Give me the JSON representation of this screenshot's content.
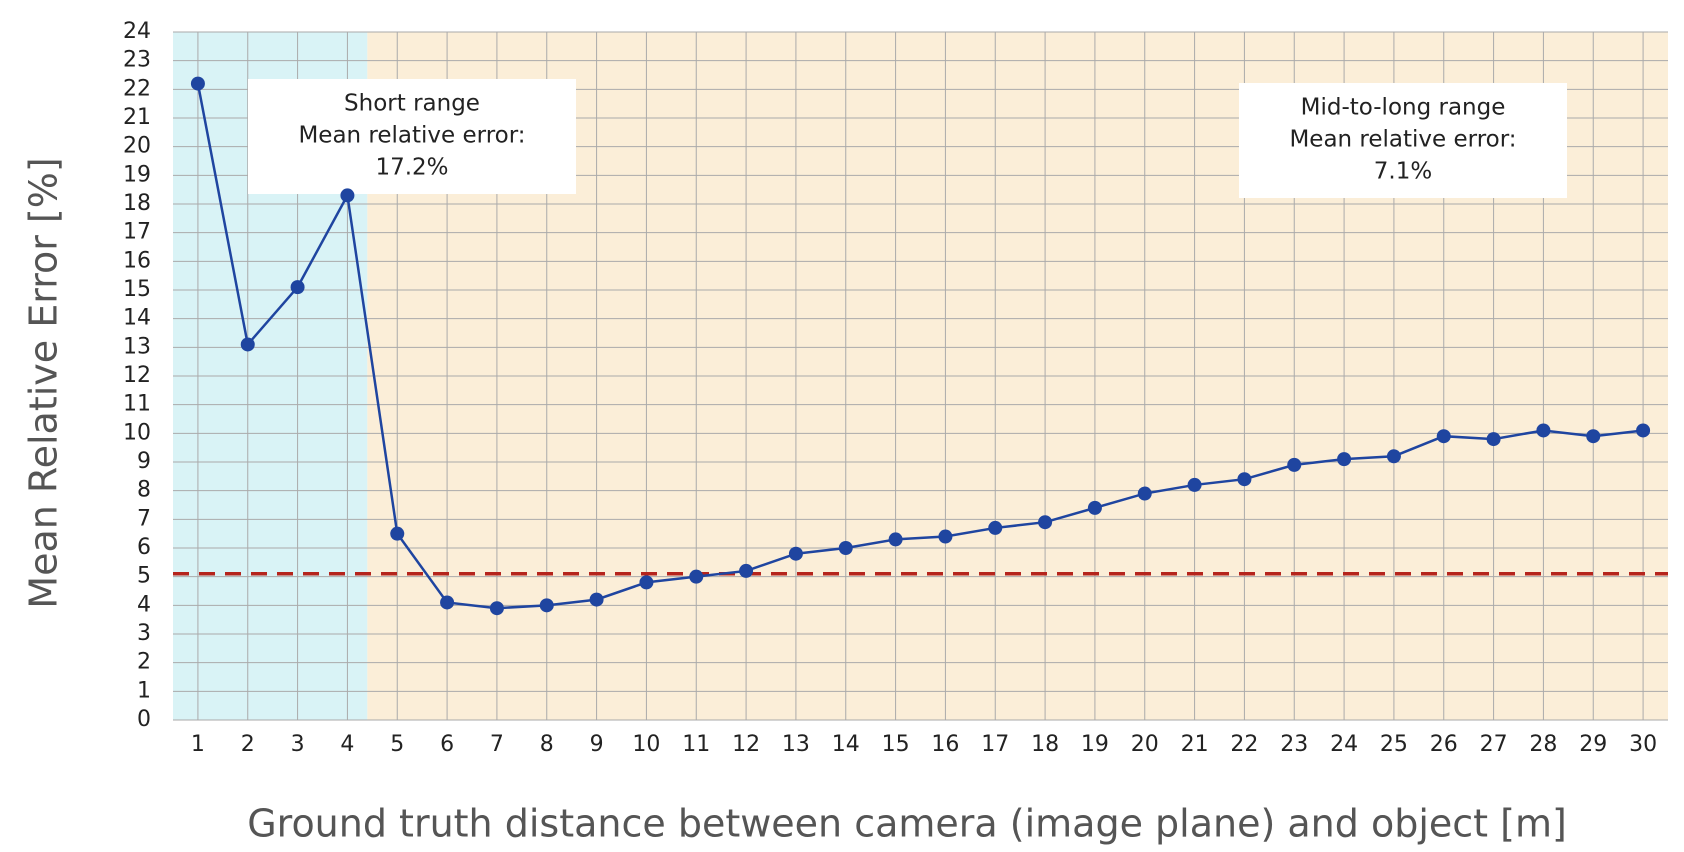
{
  "chart_data": {
    "type": "line",
    "x_label": "Ground truth distance between camera (image plane) and object [m]",
    "y_label": "Mean Relative Error [%]",
    "x": [
      1,
      2,
      3,
      4,
      5,
      6,
      7,
      8,
      9,
      10,
      11,
      12,
      13,
      14,
      15,
      16,
      17,
      18,
      19,
      20,
      21,
      22,
      23,
      24,
      25,
      26,
      27,
      28,
      29,
      30
    ],
    "series": [
      {
        "color": "#1f45a0",
        "values": [
          22.2,
          13.1,
          15.1,
          18.3,
          6.5,
          4.1,
          3.9,
          4.0,
          4.2,
          4.8,
          5.0,
          5.2,
          5.8,
          6.0,
          6.3,
          6.4,
          6.7,
          6.9,
          7.4,
          7.9,
          8.2,
          8.4,
          8.9,
          9.1,
          9.2,
          9.9,
          9.8,
          10.1,
          9.9,
          10.1
        ]
      }
    ],
    "xlim": [
      0.5,
      30.5
    ],
    "ylim": [
      0,
      24
    ],
    "xticks": [
      1,
      2,
      3,
      4,
      5,
      6,
      7,
      8,
      9,
      10,
      11,
      12,
      13,
      14,
      15,
      16,
      17,
      18,
      19,
      20,
      21,
      22,
      23,
      24,
      25,
      26,
      27,
      28,
      29,
      30
    ],
    "yticks": [
      0,
      1,
      2,
      3,
      4,
      5,
      6,
      7,
      8,
      9,
      10,
      11,
      12,
      13,
      14,
      15,
      16,
      17,
      18,
      19,
      20,
      21,
      22,
      23,
      24
    ],
    "grid": true,
    "reference_line": {
      "value": 5.1,
      "color": "#b5241c"
    },
    "regions": [
      {
        "xlim": [
          0.5,
          4.4
        ],
        "color": "#d9f3f6"
      },
      {
        "xlim": [
          4.4,
          30.5
        ],
        "color": "#fbeed8"
      }
    ],
    "annotations": [
      {
        "lines": [
          "Short range",
          "Mean relative error:",
          "17.2%"
        ]
      },
      {
        "lines": [
          "Mid-to-long range",
          "Mean relative error:",
          "7.1%"
        ]
      }
    ]
  }
}
